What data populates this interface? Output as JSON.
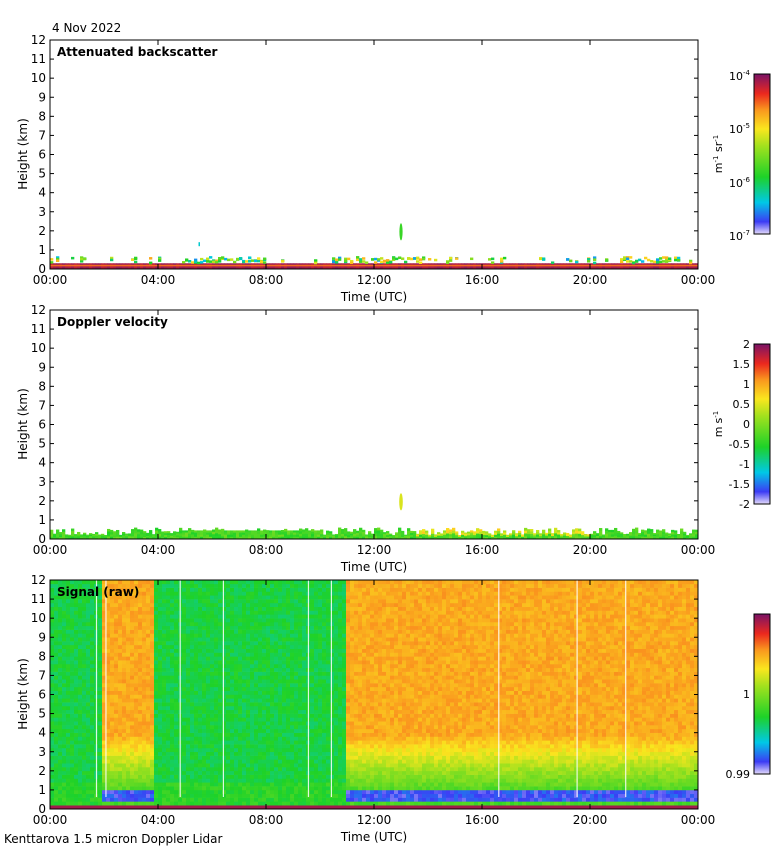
{
  "date_label": "4 Nov 2022",
  "footer": "Kenttarova 1.5 micron Doppler Lidar",
  "colors": {
    "background": "#ffffff",
    "axis": "#000000"
  },
  "chart_data": [
    {
      "type": "heatmap",
      "title": "Attenuated backscatter",
      "xlabel": "Time (UTC)",
      "ylabel": "Height (km)",
      "xlim": [
        0,
        24
      ],
      "ylim": [
        0,
        12
      ],
      "xticks": [
        "00:00",
        "04:00",
        "08:00",
        "12:00",
        "16:00",
        "20:00",
        "00:00"
      ],
      "yticks": [
        "0",
        "1",
        "2",
        "3",
        "4",
        "5",
        "6",
        "7",
        "8",
        "9",
        "10",
        "11",
        "12"
      ],
      "colorbar": {
        "scale": "log",
        "range": [
          1e-07,
          0.0001
        ],
        "ticks": [
          {
            "base": "10",
            "exp": "-4"
          },
          {
            "base": "10",
            "exp": "-5"
          },
          {
            "base": "10",
            "exp": "-6"
          },
          {
            "base": "10",
            "exp": "-7"
          }
        ],
        "unit": {
          "m": "m",
          "m_exp": "-1",
          "sr": "sr",
          "sr_exp": "-1"
        }
      },
      "features": {
        "surface_layer_top_km": 0.3,
        "aerosol_layer_top_km": 0.6,
        "cloud_blob": {
          "time_h": 13.0,
          "height_km": [
            1.5,
            2.4
          ]
        },
        "speck": {
          "time_h": 5.5,
          "height_km": 1.3
        }
      }
    },
    {
      "type": "heatmap",
      "title": "Doppler velocity",
      "xlabel": "Time (UTC)",
      "ylabel": "Height (km)",
      "xlim": [
        0,
        24
      ],
      "ylim": [
        0,
        12
      ],
      "xticks": [
        "00:00",
        "04:00",
        "08:00",
        "12:00",
        "16:00",
        "20:00",
        "00:00"
      ],
      "yticks": [
        "0",
        "1",
        "2",
        "3",
        "4",
        "5",
        "6",
        "7",
        "8",
        "9",
        "10",
        "11",
        "12"
      ],
      "colorbar": {
        "scale": "linear",
        "range": [
          -2,
          2
        ],
        "ticks": [
          "2",
          "1.5",
          "1",
          "0.5",
          "0",
          "-0.5",
          "-1",
          "-1.5",
          "-2"
        ],
        "unit": {
          "m": "m",
          "s": "s",
          "s_exp": "-1"
        }
      },
      "features": {
        "layer_top_km": 0.6,
        "cloud_blob": {
          "time_h": 13.0,
          "height_km": [
            1.5,
            2.4
          ]
        }
      }
    },
    {
      "type": "heatmap",
      "title": "Signal (raw)",
      "xlabel": "Time (UTC)",
      "ylabel": "Height (km)",
      "xlim": [
        0,
        24
      ],
      "ylim": [
        0,
        12
      ],
      "xticks": [
        "00:00",
        "04:00",
        "08:00",
        "12:00",
        "16:00",
        "20:00",
        "00:00"
      ],
      "yticks": [
        "0",
        "1",
        "2",
        "3",
        "4",
        "5",
        "6",
        "7",
        "8",
        "9",
        "10",
        "11",
        "12"
      ],
      "colorbar": {
        "scale": "linear",
        "range": [
          0.99,
          1.01
        ],
        "ticks": [
          {
            "label": "1",
            "value": 1.0
          },
          {
            "label": "0.99",
            "value": 0.99
          }
        ]
      },
      "segments": [
        {
          "start_h": 0.0,
          "end_h": 2.0,
          "regime": "low"
        },
        {
          "start_h": 2.0,
          "end_h": 3.9,
          "regime": "high"
        },
        {
          "start_h": 3.9,
          "end_h": 11.0,
          "regime": "low"
        },
        {
          "start_h": 11.0,
          "end_h": 24.0,
          "regime": "high"
        }
      ],
      "blue_band_km": [
        0.5,
        0.9
      ]
    }
  ]
}
